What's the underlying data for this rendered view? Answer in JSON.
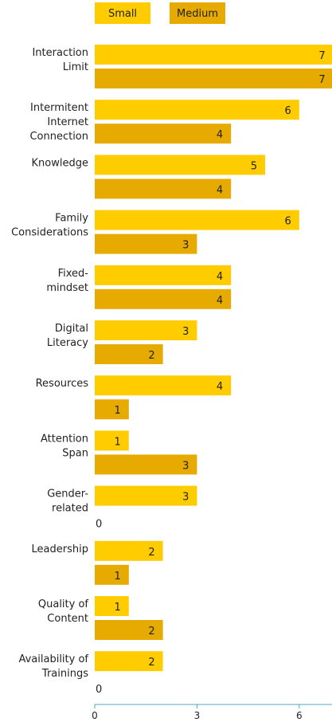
{
  "chart_data": {
    "type": "bar",
    "orientation": "horizontal",
    "categories": [
      "Interaction Limit",
      "Intermitent Internet Connection",
      "Knowledge",
      "Family Considerations",
      "Fixed-mindset",
      "Digital Literacy",
      "Resources",
      "Attention Span",
      "Gender-related",
      "Leadership",
      "Quality of Content",
      "Availability of Trainings"
    ],
    "series": [
      {
        "name": "Small",
        "color": "#FFCC00",
        "values": [
          7,
          6,
          5,
          6,
          4,
          3,
          4,
          1,
          3,
          2,
          1,
          2
        ]
      },
      {
        "name": "Medium",
        "color": "#E6AA00",
        "values": [
          7,
          4,
          4,
          3,
          4,
          2,
          1,
          3,
          0,
          1,
          2,
          0
        ]
      }
    ],
    "xlim": [
      0,
      7
    ],
    "xticks": [
      0,
      3,
      6
    ],
    "legend_position": "top-left",
    "grid": false,
    "axis_color": "#4AA8C0"
  }
}
